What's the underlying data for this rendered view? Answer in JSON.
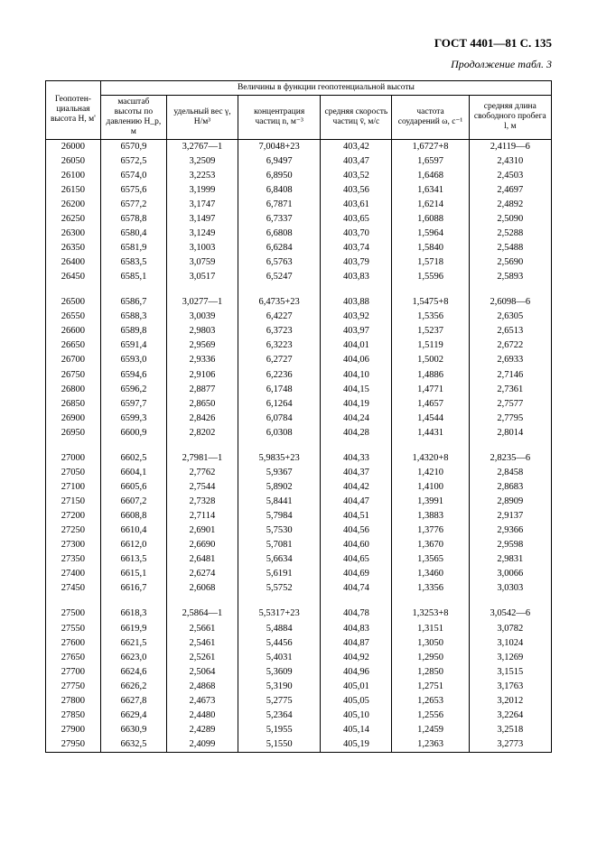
{
  "header": "ГОСТ 4401—81 С. 135",
  "subheader": "Продолжение табл. 3",
  "spanHeader": "Величины в функции геопотенциальной высоты",
  "columns": [
    "Геопотен-\nциальная\nвысота\nH, м'",
    "масштаб\nвысоты по\nдавлению\nH_p, м",
    "удельный\nвес\nγ, Н/м³",
    "концентрация\nчастиц\nn, м⁻³",
    "средняя\nскорость\nчастиц\nv̄, м/с",
    "частота\nсоударений\nω, с⁻¹",
    "средняя длина\nсвободного\nпробега\nl, м"
  ],
  "groups": [
    [
      [
        "26000",
        "6570,9",
        "3,2767—1",
        "7,0048+23",
        "403,42",
        "1,6727+8",
        "2,4119—6"
      ],
      [
        "26050",
        "6572,5",
        "3,2509",
        "6,9497",
        "403,47",
        "1,6597",
        "2,4310"
      ],
      [
        "26100",
        "6574,0",
        "3,2253",
        "6,8950",
        "403,52",
        "1,6468",
        "2,4503"
      ],
      [
        "26150",
        "6575,6",
        "3,1999",
        "6,8408",
        "403,56",
        "1,6341",
        "2,4697"
      ],
      [
        "26200",
        "6577,2",
        "3,1747",
        "6,7871",
        "403,61",
        "1,6214",
        "2,4892"
      ],
      [
        "26250",
        "6578,8",
        "3,1497",
        "6,7337",
        "403,65",
        "1,6088",
        "2,5090"
      ],
      [
        "26300",
        "6580,4",
        "3,1249",
        "6,6808",
        "403,70",
        "1,5964",
        "2,5288"
      ],
      [
        "26350",
        "6581,9",
        "3,1003",
        "6,6284",
        "403,74",
        "1,5840",
        "2,5488"
      ],
      [
        "26400",
        "6583,5",
        "3,0759",
        "6,5763",
        "403,79",
        "1,5718",
        "2,5690"
      ],
      [
        "26450",
        "6585,1",
        "3,0517",
        "6,5247",
        "403,83",
        "1,5596",
        "2,5893"
      ]
    ],
    [
      [
        "26500",
        "6586,7",
        "3,0277—1",
        "6,4735+23",
        "403,88",
        "1,5475+8",
        "2,6098—6"
      ],
      [
        "26550",
        "6588,3",
        "3,0039",
        "6,4227",
        "403,92",
        "1,5356",
        "2,6305"
      ],
      [
        "26600",
        "6589,8",
        "2,9803",
        "6,3723",
        "403,97",
        "1,5237",
        "2,6513"
      ],
      [
        "26650",
        "6591,4",
        "2,9569",
        "6,3223",
        "404,01",
        "1,5119",
        "2,6722"
      ],
      [
        "26700",
        "6593,0",
        "2,9336",
        "6,2727",
        "404,06",
        "1,5002",
        "2,6933"
      ],
      [
        "26750",
        "6594,6",
        "2,9106",
        "6,2236",
        "404,10",
        "1,4886",
        "2,7146"
      ],
      [
        "26800",
        "6596,2",
        "2,8877",
        "6,1748",
        "404,15",
        "1,4771",
        "2,7361"
      ],
      [
        "26850",
        "6597,7",
        "2,8650",
        "6,1264",
        "404,19",
        "1,4657",
        "2,7577"
      ],
      [
        "26900",
        "6599,3",
        "2,8426",
        "6,0784",
        "404,24",
        "1,4544",
        "2,7795"
      ],
      [
        "26950",
        "6600,9",
        "2,8202",
        "6,0308",
        "404,28",
        "1,4431",
        "2,8014"
      ]
    ],
    [
      [
        "27000",
        "6602,5",
        "2,7981—1",
        "5,9835+23",
        "404,33",
        "1,4320+8",
        "2,8235—6"
      ],
      [
        "27050",
        "6604,1",
        "2,7762",
        "5,9367",
        "404,37",
        "1,4210",
        "2,8458"
      ],
      [
        "27100",
        "6605,6",
        "2,7544",
        "5,8902",
        "404,42",
        "1,4100",
        "2,8683"
      ],
      [
        "27150",
        "6607,2",
        "2,7328",
        "5,8441",
        "404,47",
        "1,3991",
        "2,8909"
      ],
      [
        "27200",
        "6608,8",
        "2,7114",
        "5,7984",
        "404,51",
        "1,3883",
        "2,9137"
      ],
      [
        "27250",
        "6610,4",
        "2,6901",
        "5,7530",
        "404,56",
        "1,3776",
        "2,9366"
      ],
      [
        "27300",
        "6612,0",
        "2,6690",
        "5,7081",
        "404,60",
        "1,3670",
        "2,9598"
      ],
      [
        "27350",
        "6613,5",
        "2,6481",
        "5,6634",
        "404,65",
        "1,3565",
        "2,9831"
      ],
      [
        "27400",
        "6615,1",
        "2,6274",
        "5,6191",
        "404,69",
        "1,3460",
        "3,0066"
      ],
      [
        "27450",
        "6616,7",
        "2,6068",
        "5,5752",
        "404,74",
        "1,3356",
        "3,0303"
      ]
    ],
    [
      [
        "27500",
        "6618,3",
        "2,5864—1",
        "5,5317+23",
        "404,78",
        "1,3253+8",
        "3,0542—6"
      ],
      [
        "27550",
        "6619,9",
        "2,5661",
        "5,4884",
        "404,83",
        "1,3151",
        "3,0782"
      ],
      [
        "27600",
        "6621,5",
        "2,5461",
        "5,4456",
        "404,87",
        "1,3050",
        "3,1024"
      ],
      [
        "27650",
        "6623,0",
        "2,5261",
        "5,4031",
        "404,92",
        "1,2950",
        "3,1269"
      ],
      [
        "27700",
        "6624,6",
        "2,5064",
        "5,3609",
        "404,96",
        "1,2850",
        "3,1515"
      ],
      [
        "27750",
        "6626,2",
        "2,4868",
        "5,3190",
        "405,01",
        "1,2751",
        "3,1763"
      ],
      [
        "27800",
        "6627,8",
        "2,4673",
        "5,2775",
        "405,05",
        "1,2653",
        "3,2012"
      ],
      [
        "27850",
        "6629,4",
        "2,4480",
        "5,2364",
        "405,10",
        "1,2556",
        "3,2264"
      ],
      [
        "27900",
        "6630,9",
        "2,4289",
        "5,1955",
        "405,14",
        "1,2459",
        "3,2518"
      ],
      [
        "27950",
        "6632,5",
        "2,4099",
        "5,1550",
        "405,19",
        "1,2363",
        "3,2773"
      ]
    ]
  ]
}
